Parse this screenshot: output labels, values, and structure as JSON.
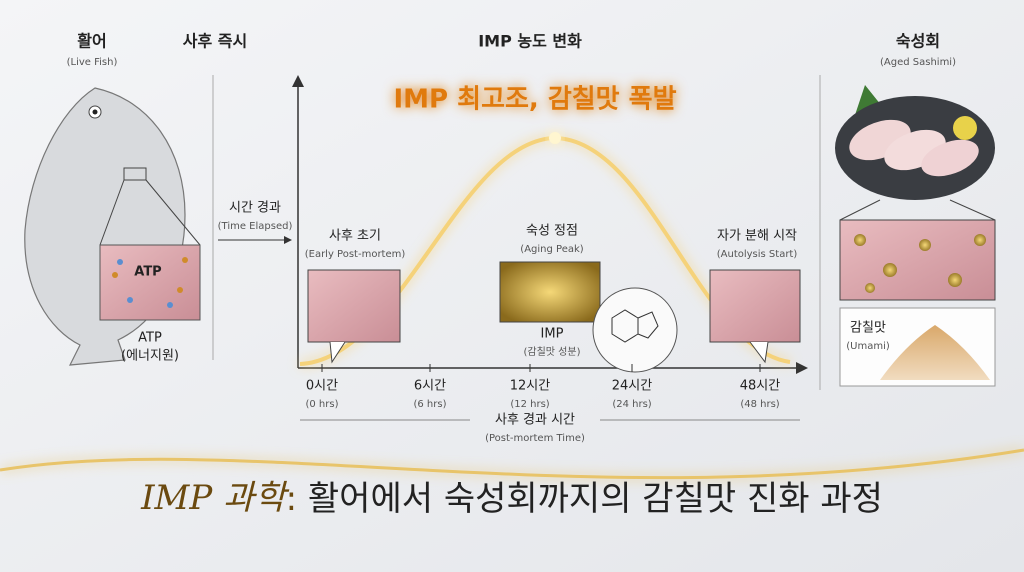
{
  "header": {
    "live_fish": "활어",
    "live_fish_en": "(Live Fish)",
    "right_after_death": "사후 즉시",
    "imp_change": "IMP 농도 변화",
    "aged": "숙성회",
    "aged_en": "(Aged Sashimi)"
  },
  "peak_banner": "IMP 최고조, 감칠맛 폭발",
  "time_elapsed": {
    "label": "시간 경과",
    "label_en": "(Time Elapsed)"
  },
  "fish_box": {
    "inner": "ATP",
    "label": "ATP",
    "label_sub": "(에너지원)"
  },
  "stages": [
    {
      "label": "사후 초기",
      "label_en": "(Early Post-mortem)"
    },
    {
      "label": "숙성 정점",
      "label_en": "(Aging Peak)"
    },
    {
      "label": "자가 분해 시작",
      "label_en": "(Autolysis Start)"
    }
  ],
  "imp": {
    "label": "IMP",
    "label_sub": "(감칠맛 성분)"
  },
  "time_ticks": [
    {
      "label": "0시간",
      "label_en": "(0 hrs)"
    },
    {
      "label": "6시간",
      "label_en": "(6 hrs)"
    },
    {
      "label": "12시간",
      "label_en": "(12 hrs)"
    },
    {
      "label": "24시간",
      "label_en": "(24 hrs)"
    },
    {
      "label": "48시간",
      "label_en": "(48 hrs)"
    }
  ],
  "x_axis": {
    "label": "사후 경과 시간",
    "label_en": "(Post-mortem Time)"
  },
  "umami": {
    "label": "감칠맛",
    "label_en": "(Umami)"
  },
  "title": {
    "lead": "IMP 과학",
    "sep": ":",
    "rest": " 활어에서 숙성회까지의 감칠맛 진화 과정"
  }
}
